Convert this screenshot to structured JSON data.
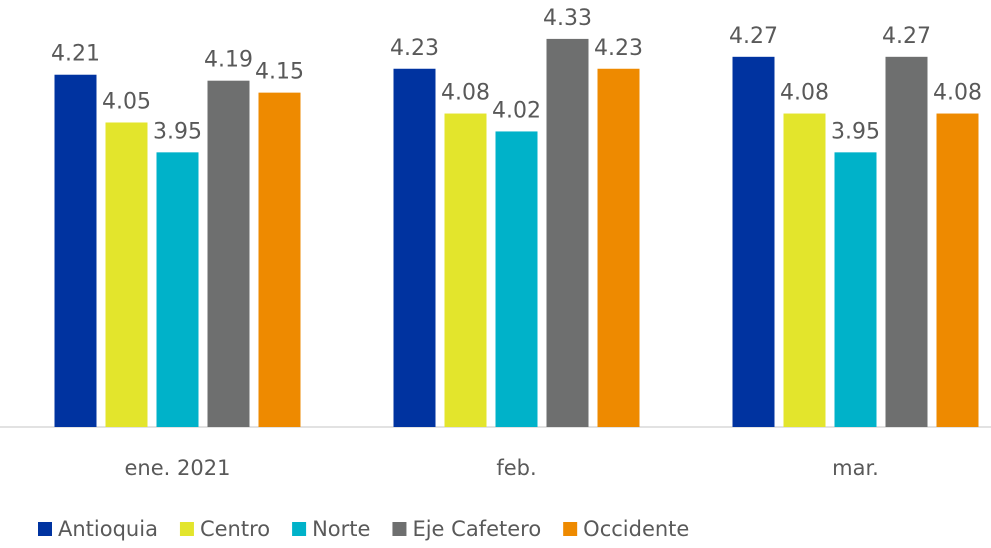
{
  "chart_data": {
    "type": "bar",
    "categories": [
      "ene. 2021",
      "feb.",
      "mar."
    ],
    "series": [
      {
        "name": "Antioquia",
        "color": "#0033a0",
        "values": [
          4.21,
          4.23,
          4.27
        ]
      },
      {
        "name": "Centro",
        "color": "#e3e52c",
        "values": [
          4.05,
          4.08,
          4.08
        ]
      },
      {
        "name": "Norte",
        "color": "#00b2c9",
        "values": [
          3.95,
          4.02,
          3.95
        ]
      },
      {
        "name": "Eje Cafetero",
        "color": "#6e6f6f",
        "values": [
          4.19,
          4.33,
          4.27
        ]
      },
      {
        "name": "Occidente",
        "color": "#ee8a00",
        "values": [
          4.15,
          4.23,
          4.08
        ]
      }
    ],
    "ylim": [
      3.03,
      4.4
    ],
    "legend": "bottom"
  }
}
